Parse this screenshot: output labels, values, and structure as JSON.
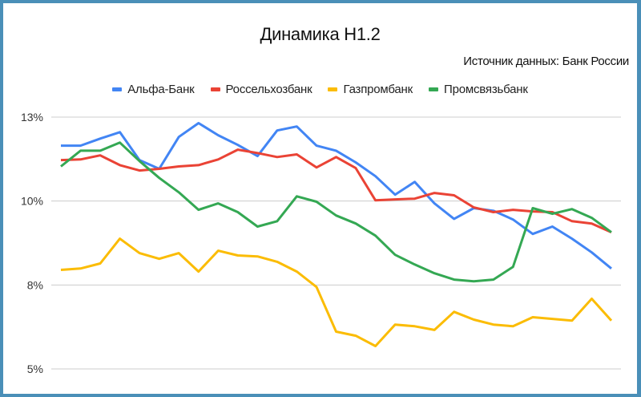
{
  "header": {
    "title": "Динамика Н1.2",
    "subtitle": "Источник данных: Банк России"
  },
  "legend": [
    {
      "label": "Альфа-Банк",
      "color": "#4285f4"
    },
    {
      "label": "Россельхозбанк",
      "color": "#ea4335"
    },
    {
      "label": "Газпромбанк",
      "color": "#fbbc04"
    },
    {
      "label": "Промсвязьбанк",
      "color": "#34a853"
    }
  ],
  "chart_data": {
    "type": "line",
    "title": "Динамика Н1.2",
    "subtitle": "Источник данных: Банк России",
    "xlabel": "",
    "ylabel": "",
    "ylim": [
      5,
      12.5
    ],
    "yticks": [
      {
        "value": 12.5,
        "label": "13%"
      },
      {
        "value": 10,
        "label": "10%"
      },
      {
        "value": 7.5,
        "label": "8%"
      },
      {
        "value": 5,
        "label": "5%"
      }
    ],
    "grid": true,
    "legend_position": "top",
    "x": [
      1,
      2,
      3,
      4,
      5,
      6,
      7,
      8,
      9,
      10,
      11,
      12,
      13,
      14,
      15,
      16,
      17,
      18,
      19,
      20,
      21,
      22,
      23,
      24,
      25,
      26,
      27,
      28,
      29
    ],
    "series": [
      {
        "name": "Альфа-Банк",
        "color": "#4285f4",
        "values": [
          11.65,
          11.65,
          11.86,
          12.05,
          11.22,
          10.96,
          11.91,
          12.32,
          11.96,
          11.67,
          11.34,
          12.1,
          12.22,
          11.65,
          11.5,
          11.15,
          10.74,
          10.19,
          10.57,
          9.93,
          9.47,
          9.79,
          9.71,
          9.45,
          9.02,
          9.24,
          8.88,
          8.47,
          7.99
        ]
      },
      {
        "name": "Россельхозбанк",
        "color": "#ea4335",
        "values": [
          11.22,
          11.24,
          11.36,
          11.07,
          10.91,
          10.96,
          11.03,
          11.07,
          11.24,
          11.53,
          11.43,
          11.31,
          11.39,
          11.0,
          11.31,
          10.98,
          10.02,
          10.05,
          10.07,
          10.24,
          10.17,
          9.81,
          9.67,
          9.74,
          9.69,
          9.67,
          9.4,
          9.33,
          9.07
        ]
      },
      {
        "name": "Газпромбанк",
        "color": "#fbbc04",
        "values": [
          7.95,
          7.99,
          8.14,
          8.88,
          8.45,
          8.28,
          8.45,
          7.9,
          8.52,
          8.38,
          8.35,
          8.19,
          7.9,
          7.44,
          6.11,
          5.99,
          5.68,
          6.32,
          6.27,
          6.16,
          6.7,
          6.47,
          6.32,
          6.27,
          6.54,
          6.49,
          6.44,
          7.09,
          6.44
        ]
      },
      {
        "name": "Промсвязьбанк",
        "color": "#34a853",
        "values": [
          11.03,
          11.5,
          11.5,
          11.74,
          11.19,
          10.69,
          10.26,
          9.74,
          9.93,
          9.67,
          9.24,
          9.4,
          10.14,
          9.98,
          9.57,
          9.33,
          8.97,
          8.4,
          8.11,
          7.85,
          7.66,
          7.61,
          7.66,
          8.04,
          9.79,
          9.62,
          9.76,
          9.5,
          9.07
        ]
      }
    ]
  },
  "style": {
    "border_color": "#4a8fb8",
    "grid_color": "#cccccc"
  }
}
